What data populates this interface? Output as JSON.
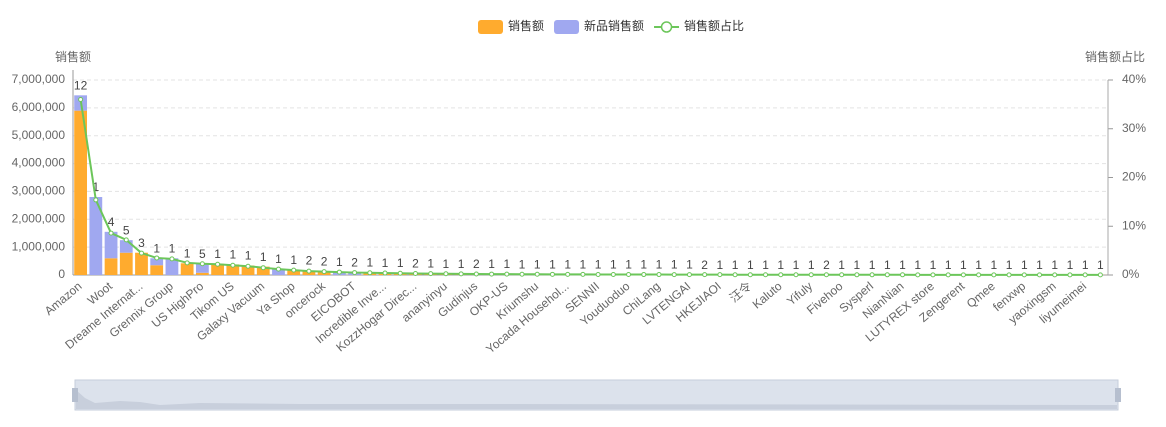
{
  "chart_data": {
    "type": "bar",
    "y_label": "销售额",
    "y2_label": "销售额占比",
    "categories": [
      "Amazon",
      null,
      "Woot",
      null,
      "Dreame Internat...",
      null,
      "Grennix Group",
      null,
      "US HighPro",
      null,
      "Tikom US",
      null,
      "Galaxy Vacuum",
      null,
      "Ya Shop",
      null,
      "oncerock",
      null,
      "EICOBOT",
      null,
      "Incredible Inve...",
      null,
      "KozzHogar Direc...",
      null,
      "ananyinyu",
      null,
      "Gudinjus",
      null,
      "OKP-US",
      null,
      "Kriumshu",
      null,
      "Yocada Househol...",
      null,
      "SENNII",
      null,
      "Youduoduo",
      null,
      "ChiLang",
      null,
      "LVTENGAI",
      null,
      "HKEJIAOI",
      null,
      "汪令",
      null,
      "Kaluto",
      null,
      "Yifuly",
      null,
      "Fivehoo",
      null,
      "Sysperl",
      null,
      "NianNian",
      null,
      "LUTYREX store",
      null,
      "Zengerent",
      null,
      "Qmee",
      null,
      "fenxwp",
      null,
      "yaoxingsm",
      null,
      "liyumeimei",
      null
    ],
    "series": [
      {
        "name": "销售额",
        "color": "#ffab2e",
        "values": [
          5900000,
          0,
          600000,
          800000,
          800000,
          350000,
          0,
          420000,
          80000,
          400000,
          380000,
          340000,
          300000,
          0,
          190000,
          160000,
          140000,
          0,
          0,
          90000,
          80000,
          70000,
          62000,
          55000,
          50000,
          45000,
          41000,
          38000,
          35000,
          32000,
          30000,
          28000,
          26000,
          24000,
          22000,
          21000,
          20000,
          19000,
          18000,
          17000,
          16000,
          15000,
          14000,
          13000,
          12500,
          12000,
          11500,
          11000,
          10500,
          10000,
          9500,
          9000,
          8500,
          8000,
          7500,
          7000,
          6500,
          6000,
          5500,
          5000,
          4800,
          4600,
          4400,
          4200,
          4000,
          3800,
          3600,
          3400
        ]
      },
      {
        "name": "新品销售额",
        "color": "#a0a8f0",
        "values": [
          550000,
          2800000,
          950000,
          450000,
          0,
          250000,
          600000,
          0,
          330000,
          0,
          0,
          0,
          0,
          230000,
          0,
          0,
          0,
          120000,
          100000,
          0,
          0,
          0,
          0,
          0,
          0,
          0,
          0,
          0,
          0,
          0,
          0,
          0,
          0,
          0,
          0,
          0,
          0,
          0,
          0,
          0,
          0,
          0,
          0,
          0,
          0,
          0,
          0,
          0,
          0,
          0,
          0,
          0,
          0,
          0,
          0,
          0,
          0,
          0,
          0,
          0,
          0,
          0,
          0,
          0,
          0,
          0,
          0,
          0
        ]
      },
      {
        "name": "销售额占比",
        "color": "#6cc65a",
        "axis": "y2",
        "values": [
          36,
          15.4,
          8.6,
          7.2,
          4.5,
          3.5,
          3.3,
          2.5,
          2.3,
          2.2,
          2.0,
          1.8,
          1.5,
          1.2,
          1.0,
          0.8,
          0.7,
          0.6,
          0.5,
          0.45,
          0.4,
          0.35,
          0.3,
          0.28,
          0.25,
          0.23,
          0.2,
          0.19,
          0.18,
          0.16,
          0.15,
          0.14,
          0.13,
          0.12,
          0.11,
          0.1,
          0.1,
          0.09,
          0.09,
          0.08,
          0.08,
          0.07,
          0.07,
          0.06,
          0.06,
          0.06,
          0.05,
          0.05,
          0.05,
          0.05,
          0.05,
          0.04,
          0.04,
          0.04,
          0.04,
          0.03,
          0.03,
          0.03,
          0.03,
          0.02,
          0.02,
          0.02,
          0.02,
          0.02,
          0.02,
          0.02,
          0.02,
          0.02
        ]
      }
    ],
    "counts": [
      12,
      1,
      4,
      5,
      3,
      1,
      1,
      1,
      5,
      1,
      1,
      1,
      1,
      1,
      1,
      2,
      2,
      1,
      2,
      1,
      1,
      1,
      2,
      1,
      1,
      1,
      2,
      1,
      1,
      1,
      1,
      1,
      1,
      1,
      1,
      1,
      1,
      1,
      1,
      1,
      1,
      2,
      1,
      1,
      1,
      1,
      1,
      1,
      1,
      2,
      1,
      1,
      1,
      1,
      1,
      1,
      1,
      1,
      1,
      1,
      1,
      1,
      1,
      1,
      1,
      1,
      1,
      1
    ],
    "ylim": [
      0,
      7000000
    ],
    "yticks": [
      0,
      {
        "value": 1000000,
        "label": "1,000,000"
      },
      {
        "value": 2000000,
        "label": "2,000,000"
      },
      {
        "value": 3000000,
        "label": "3,000,000"
      },
      {
        "value": 4000000,
        "label": "4,000,000"
      },
      {
        "value": 5000000,
        "label": "5,000,000"
      },
      {
        "value": 6000000,
        "label": "6,000,000"
      },
      {
        "value": 7000000,
        "label": "7,000,000"
      }
    ],
    "y2lim": [
      0,
      40
    ],
    "y2ticks": [
      {
        "value": 0,
        "label": "0%"
      },
      {
        "value": 10,
        "label": "10%"
      },
      {
        "value": 20,
        "label": "20%"
      },
      {
        "value": 30,
        "label": "30%"
      },
      {
        "value": 40,
        "label": "40%"
      }
    ],
    "grid": true,
    "stacked": true
  }
}
